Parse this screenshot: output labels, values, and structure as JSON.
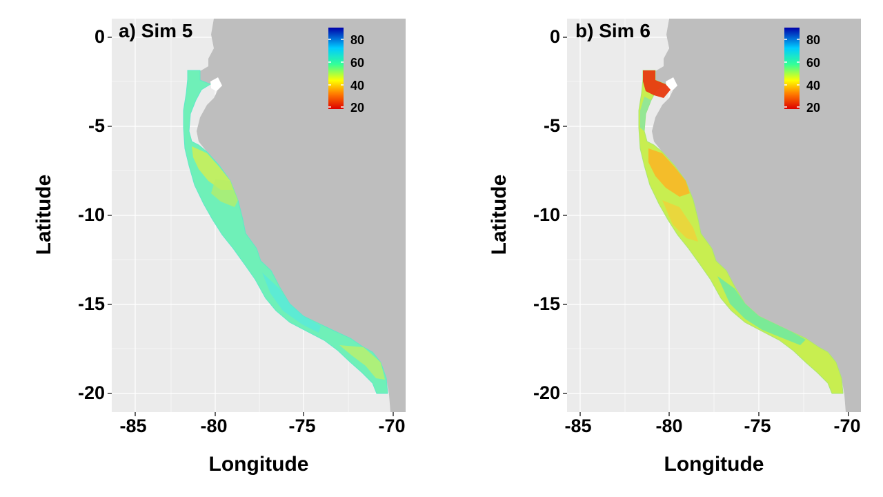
{
  "panels": [
    {
      "title": "a) Sim 5",
      "xlabel": "Longitude",
      "ylabel": "Latitude",
      "x_ticks": [
        "-85",
        "-80",
        "-75",
        "-70"
      ],
      "y_ticks": [
        "0",
        "-5",
        "-10",
        "-15",
        "-20"
      ],
      "legend_ticks": [
        "80",
        "60",
        "40",
        "20"
      ]
    },
    {
      "title": "b) Sim 6",
      "xlabel": "Longitude",
      "ylabel": "Latitude",
      "x_ticks": [
        "-85",
        "-80",
        "-75",
        "-70"
      ],
      "y_ticks": [
        "0",
        "-5",
        "-10",
        "-15",
        "-20"
      ],
      "legend_ticks": [
        "80",
        "60",
        "40",
        "20"
      ]
    }
  ],
  "chart_data": [
    {
      "type": "heatmap",
      "title": "a) Sim 5",
      "xlabel": "Longitude",
      "ylabel": "Latitude",
      "xlim": [
        -86.5,
        -69.5
      ],
      "ylim": [
        -21,
        1
      ],
      "x_ticks": [
        -85,
        -80,
        -75,
        -70
      ],
      "y_ticks": [
        0,
        -5,
        -10,
        -15,
        -20
      ],
      "colorbar": {
        "range": [
          20,
          85
        ],
        "ticks": [
          80,
          60,
          40,
          20
        ],
        "colors": [
          "#0000aa",
          "#00ccff",
          "#33ff99",
          "#ffff00",
          "#ff7700",
          "#dd0000"
        ]
      },
      "typical_value_range": [
        50,
        65
      ],
      "land_color": "#bebebe",
      "ocean_color": "#ebebeb"
    },
    {
      "type": "heatmap",
      "title": "b) Sim 6",
      "xlabel": "Longitude",
      "ylabel": "Latitude",
      "xlim": [
        -86.5,
        -69.5
      ],
      "ylim": [
        -21,
        1
      ],
      "x_ticks": [
        -85,
        -80,
        -75,
        -70
      ],
      "y_ticks": [
        0,
        -5,
        -10,
        -15,
        -20
      ],
      "colorbar": {
        "range": [
          20,
          85
        ],
        "ticks": [
          80,
          60,
          40,
          20
        ],
        "colors": [
          "#0000aa",
          "#00ccff",
          "#33ff99",
          "#ffff00",
          "#ff7700",
          "#dd0000"
        ]
      },
      "typical_value_range": [
        40,
        60
      ],
      "land_color": "#bebebe",
      "ocean_color": "#ebebeb"
    }
  ]
}
